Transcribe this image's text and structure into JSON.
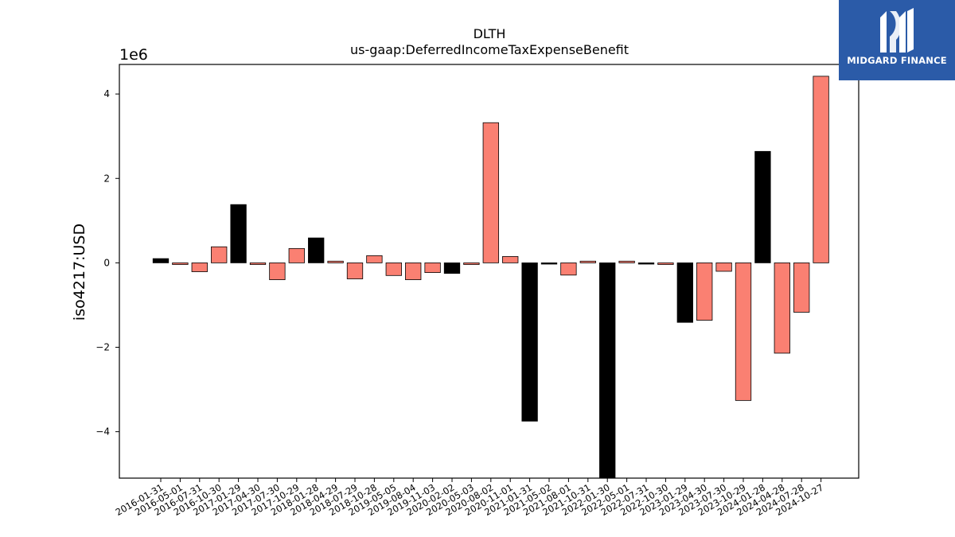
{
  "chart_data": {
    "type": "bar",
    "title": "DLTH",
    "subtitle": "us-gaap:DeferredIncomeTaxExpenseBenefit",
    "ylabel": "iso4217:USD",
    "xlabel": "",
    "y_offset_label": "1e6",
    "y_scale": 1000000,
    "ylim": [
      -5100000,
      4700000
    ],
    "yticks": [
      -4000000,
      -2000000,
      0,
      2000000,
      4000000
    ],
    "ytick_labels": [
      "−4",
      "−2",
      "0",
      "2",
      "4"
    ],
    "grid": false,
    "colors": {
      "highlight": "#000000",
      "normal": "#fa8072",
      "edge": "#000000"
    },
    "categories": [
      "2016-01-31",
      "2016-05-01",
      "2016-07-31",
      "2016-10-30",
      "2017-01-29",
      "2017-04-30",
      "2017-07-30",
      "2017-10-29",
      "2018-01-28",
      "2018-04-29",
      "2018-07-29",
      "2018-10-28",
      "2019-05-05",
      "2019-08-04",
      "2019-11-03",
      "2020-02-02",
      "2020-05-03",
      "2020-08-02",
      "2020-11-01",
      "2021-01-31",
      "2021-05-02",
      "2021-08-01",
      "2021-10-31",
      "2022-01-30",
      "2022-05-01",
      "2022-07-31",
      "2022-10-30",
      "2023-01-29",
      "2023-04-30",
      "2023-07-30",
      "2023-10-29",
      "2024-01-28",
      "2024-04-28",
      "2024-07-28",
      "2024-10-27"
    ],
    "values": [
      100000,
      -40000,
      -210000,
      380000,
      1380000,
      -40000,
      -400000,
      340000,
      590000,
      40000,
      -380000,
      170000,
      -300000,
      -400000,
      -230000,
      -250000,
      -40000,
      3320000,
      150000,
      -3750000,
      -30000,
      -290000,
      40000,
      -5100000,
      40000,
      -30000,
      -40000,
      -1410000,
      -1360000,
      -200000,
      -3260000,
      2640000,
      -2140000,
      -1170000,
      4420000
    ],
    "highlight": [
      true,
      false,
      false,
      false,
      true,
      false,
      false,
      false,
      true,
      false,
      false,
      false,
      false,
      false,
      false,
      true,
      false,
      false,
      false,
      true,
      true,
      false,
      false,
      true,
      false,
      true,
      false,
      true,
      false,
      false,
      false,
      true,
      false,
      false,
      false
    ]
  },
  "logo": {
    "text": "MIDGARD FINANCE",
    "icon": "midgard-logo-icon",
    "bg": "#2b5ba8"
  }
}
